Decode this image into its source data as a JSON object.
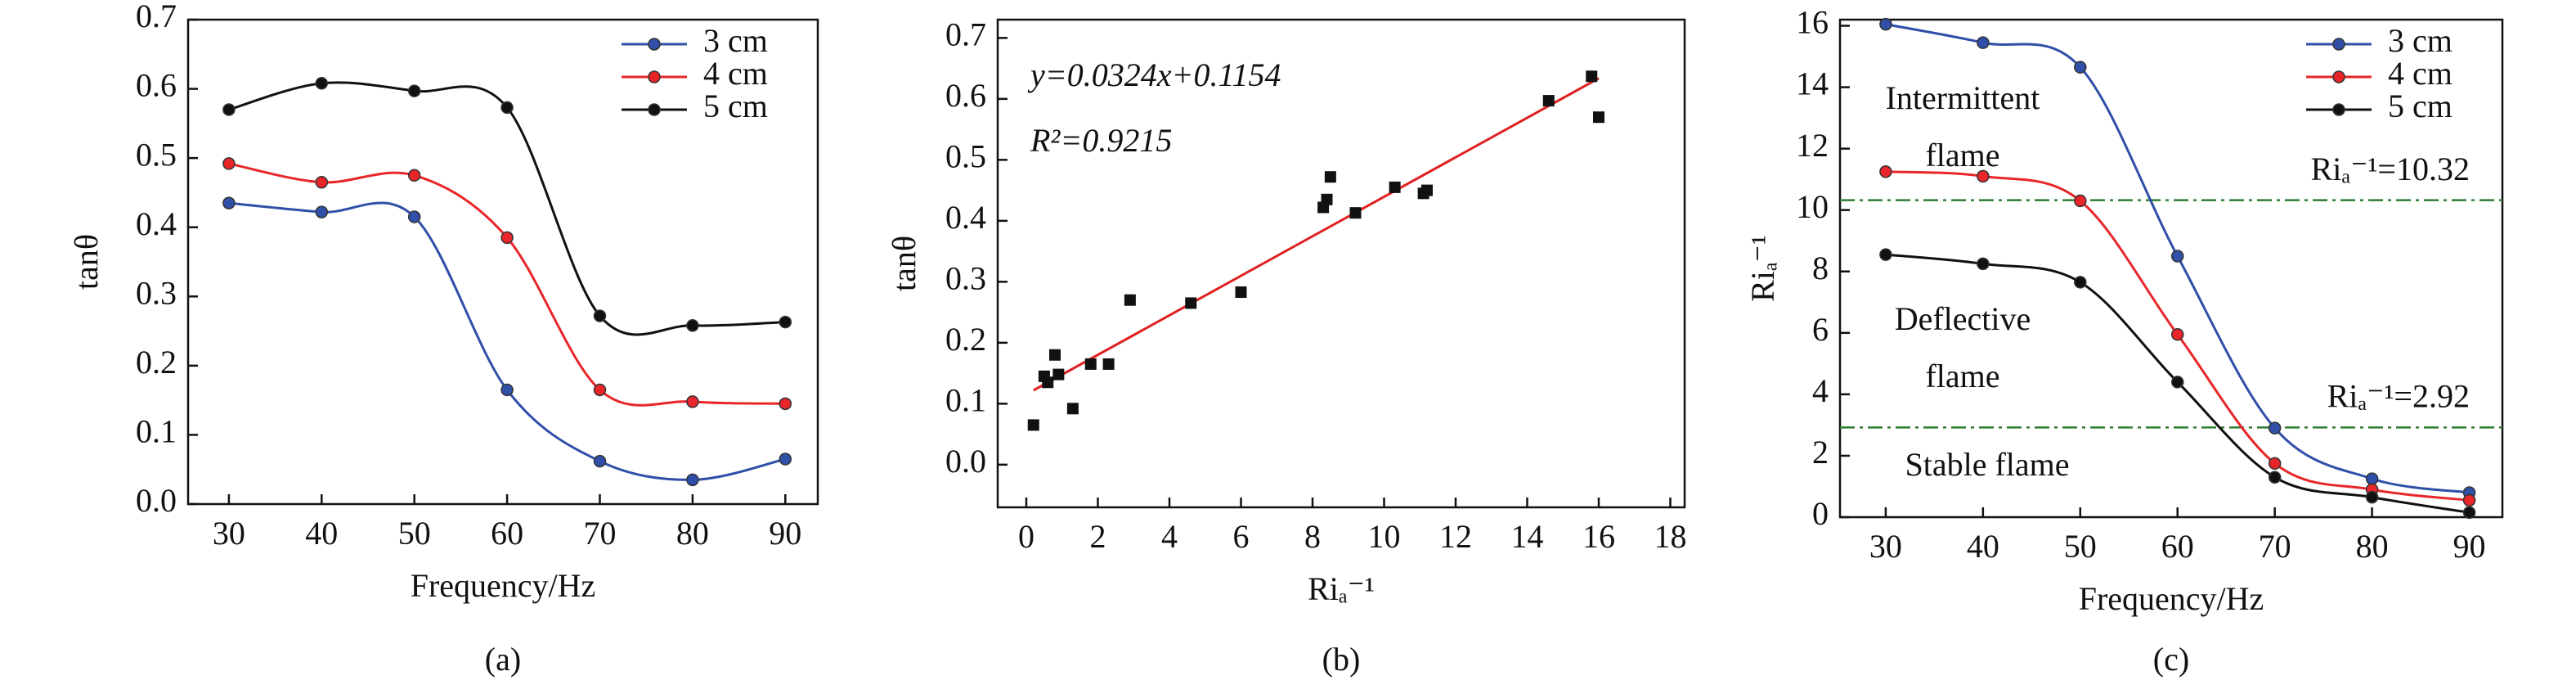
{
  "chart_data": [
    {
      "type": "line",
      "panel_label": "(a)",
      "x_label": "Frequency/Hz",
      "y_label": "tanθ",
      "x": [
        30,
        40,
        50,
        60,
        70,
        80,
        90
      ],
      "xlim": [
        25.6,
        93.5
      ],
      "xticks": [
        30,
        40,
        50,
        60,
        70,
        80,
        90
      ],
      "ylim": [
        0,
        0.7
      ],
      "yticks": [
        {
          "value": 0,
          "label": "0.0"
        },
        0.1,
        0.2,
        0.3,
        0.4,
        0.5,
        0.6,
        0.7
      ],
      "legend": "upper right",
      "smooth": true,
      "series": [
        {
          "name": "3 cm",
          "color": "#2f4fa8",
          "values": [
            0.435,
            0.422,
            0.415,
            0.165,
            0.062,
            0.035,
            0.065
          ]
        },
        {
          "name": "4 cm",
          "color": "#e8262a",
          "values": [
            0.492,
            0.465,
            0.475,
            0.385,
            0.165,
            0.148,
            0.145
          ]
        },
        {
          "name": "5 cm",
          "color": "#111111",
          "values": [
            0.57,
            0.608,
            0.597,
            0.573,
            0.272,
            0.258,
            0.263
          ]
        }
      ]
    },
    {
      "type": "scatter",
      "panel_label": "(b)",
      "x_label": "Riₐ⁻¹",
      "y_label": "tanθ",
      "xlim": [
        -0.8,
        18.4
      ],
      "xticks": [
        0,
        2,
        4,
        6,
        8,
        10,
        12,
        14,
        16,
        18
      ],
      "ylim": [
        -0.07,
        0.73
      ],
      "yticks": [
        {
          "value": 0,
          "label": "0.0"
        },
        0.1,
        0.2,
        0.3,
        0.4,
        0.5,
        0.6,
        0.7
      ],
      "color": "#111111",
      "fit_color": "#e02020",
      "fit": {
        "slope": 0.0324,
        "intercept": 0.1154
      },
      "annotations": [
        "y=0.0324x+0.1154",
        "R²=0.9215"
      ],
      "x": [
        0.2,
        0.5,
        0.6,
        0.8,
        0.9,
        1.3,
        1.8,
        2.3,
        2.9,
        4.6,
        6.0,
        8.3,
        8.4,
        8.5,
        9.2,
        10.3,
        11.1,
        11.2,
        14.6,
        15.8,
        16.0
      ],
      "values": [
        0.065,
        0.145,
        0.135,
        0.18,
        0.148,
        0.092,
        0.165,
        0.165,
        0.27,
        0.265,
        0.283,
        0.422,
        0.435,
        0.472,
        0.413,
        0.455,
        0.445,
        0.45,
        0.597,
        0.637,
        0.57
      ]
    },
    {
      "type": "line",
      "panel_label": "(c)",
      "x_label": "Frequency/Hz",
      "y_label": "Riₐ⁻¹",
      "x": [
        30,
        40,
        50,
        60,
        70,
        80,
        90
      ],
      "xlim": [
        25.3,
        93.4
      ],
      "xticks": [
        30,
        40,
        50,
        60,
        70,
        80,
        90
      ],
      "ylim": [
        0,
        16.2
      ],
      "yticks": [
        0,
        2,
        4,
        6,
        8,
        10,
        12,
        14,
        16
      ],
      "legend": "upper right",
      "smooth": true,
      "thresholds": [
        {
          "value": 10.32,
          "label": "Riₐ⁻¹=10.32"
        },
        {
          "value": 2.92,
          "label": "Riₐ⁻¹=2.92"
        }
      ],
      "threshold_color": "#2e7d32",
      "annotations": [
        [
          "Intermittent",
          "flame"
        ],
        [
          "Deflective",
          "flame"
        ],
        [
          "Stable flame"
        ]
      ],
      "series": [
        {
          "name": "3 cm",
          "color": "#2f4fa8",
          "values": [
            16.05,
            15.45,
            14.65,
            8.5,
            2.9,
            1.25,
            0.8
          ]
        },
        {
          "name": "4 cm",
          "color": "#e8262a",
          "values": [
            11.25,
            11.1,
            10.3,
            5.95,
            1.75,
            0.9,
            0.55
          ]
        },
        {
          "name": "5 cm",
          "color": "#111111",
          "values": [
            8.55,
            8.25,
            7.65,
            4.4,
            1.3,
            0.65,
            0.15
          ]
        }
      ]
    }
  ]
}
